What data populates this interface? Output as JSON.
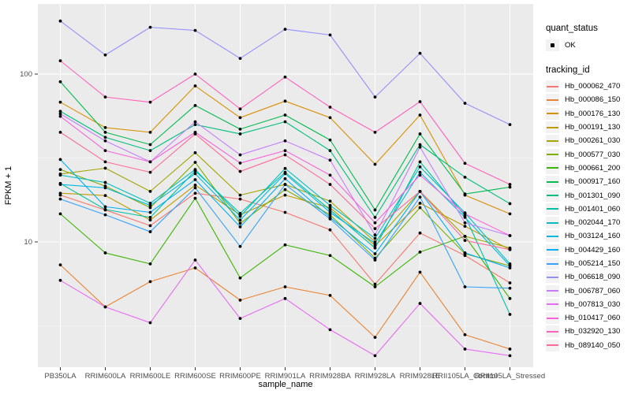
{
  "figure": {
    "background": "#FFFFFF",
    "panel_background": "#EBEBEB",
    "grid_major_color": "#FFFFFF",
    "grid_minor_color": "#F5F5F5",
    "tick_label_color": "#4D4D4D",
    "point_color": "#000000"
  },
  "chart_data": {
    "type": "line",
    "title": "",
    "xlabel": "sample_name",
    "ylabel": "FPKM + 1",
    "yscale": "log10",
    "ylim": [
      1.8,
      240
    ],
    "grid": true,
    "legend_position": "right",
    "point_shape": "filled-black-point",
    "yticks": [
      {
        "value": 10,
        "label": "10"
      },
      {
        "value": 100,
        "label": "100"
      }
    ],
    "minor_yticks": [
      3.1623,
      31.623
    ],
    "categories": [
      "PB350LA",
      "RRIM600LA",
      "RRIM600LE",
      "RRIM600SE",
      "RRIM600PE",
      "RRIM901LA",
      "RRIM928BA",
      "RRIM928LA",
      "RRIM928LE",
      "RRII105LA_Control",
      "RRII105LA_Stressed"
    ],
    "series": [
      {
        "tracking_id": "Hb_000062_470",
        "color": "#F8766D",
        "values": [
          19,
          15.5,
          12.5,
          19.5,
          18,
          15,
          11.8,
          5.6,
          11.3,
          8.3,
          5.7
        ]
      },
      {
        "tracking_id": "Hb_000086_150",
        "color": "#EA8331",
        "values": [
          7.3,
          4.1,
          5.8,
          7.0,
          4.5,
          5.4,
          4.8,
          2.7,
          6.6,
          2.8,
          2.3
        ]
      },
      {
        "tracking_id": "Hb_000176_130",
        "color": "#D89000",
        "values": [
          68,
          48,
          45,
          85,
          55,
          69,
          55,
          29,
          57,
          19,
          14.7
        ]
      },
      {
        "tracking_id": "Hb_000191_130",
        "color": "#C09B00",
        "values": [
          19.5,
          18.9,
          13.5,
          21.8,
          14.5,
          19,
          16,
          9.5,
          17,
          12.4,
          9.0
        ]
      },
      {
        "tracking_id": "Hb_000261_030",
        "color": "#A3A500",
        "values": [
          25.4,
          27.5,
          20,
          34,
          19,
          22,
          17.5,
          10,
          20,
          10.8,
          9.2
        ]
      },
      {
        "tracking_id": "Hb_000577_030",
        "color": "#7CAE00",
        "values": [
          27,
          21.5,
          16,
          29.8,
          12.9,
          20.5,
          14.5,
          8.0,
          16,
          8.5,
          7.2
        ]
      },
      {
        "tracking_id": "Hb_000661_200",
        "color": "#39B600",
        "values": [
          14.7,
          8.6,
          7.4,
          18.2,
          6.1,
          9.6,
          8.3,
          5.4,
          8.7,
          10.8,
          4.6
        ]
      },
      {
        "tracking_id": "Hb_000917_160",
        "color": "#00BB4E",
        "values": [
          90,
          45,
          38,
          65,
          47,
          57,
          40.5,
          15.5,
          44,
          19.3,
          21.2
        ]
      },
      {
        "tracking_id": "Hb_001301_090",
        "color": "#00BF7D",
        "values": [
          60,
          42,
          35,
          50,
          44,
          52,
          35,
          14,
          38,
          24.3,
          16.9
        ]
      },
      {
        "tracking_id": "Hb_001401_060",
        "color": "#00C1A3",
        "values": [
          22.3,
          15.6,
          14,
          26.5,
          14.8,
          26,
          15.5,
          9.2,
          30,
          14.3,
          3.7
        ]
      },
      {
        "tracking_id": "Hb_002044_170",
        "color": "#00BFC4",
        "values": [
          25,
          22.6,
          17,
          27,
          14.2,
          27.4,
          16.5,
          10.5,
          28,
          14.9,
          7.4
        ]
      },
      {
        "tracking_id": "Hb_003124_160",
        "color": "#00BAE0",
        "values": [
          22,
          21,
          16.5,
          25.5,
          13.5,
          25.5,
          15,
          9.8,
          26,
          14.0,
          7.2
        ]
      },
      {
        "tracking_id": "Hb_004429_160",
        "color": "#00B0F6",
        "values": [
          31,
          16.2,
          15,
          23.5,
          12.3,
          23.8,
          14,
          8.5,
          20,
          8.6,
          7.0
        ]
      },
      {
        "tracking_id": "Hb_005214_150",
        "color": "#35A2FF",
        "values": [
          18,
          14.5,
          11.5,
          21,
          9.4,
          22,
          13.7,
          7.8,
          18.5,
          5.4,
          5.3
        ]
      },
      {
        "tracking_id": "Hb_006618_090",
        "color": "#9590FF",
        "values": [
          207,
          130,
          190,
          182,
          124,
          185,
          171,
          73,
          133,
          67,
          50
        ]
      },
      {
        "tracking_id": "Hb_006787_060",
        "color": "#C77CFF",
        "values": [
          58,
          40,
          30,
          52,
          33,
          40,
          30.7,
          11,
          36.7,
          13,
          10.9
        ]
      },
      {
        "tracking_id": "Hb_007813_030",
        "color": "#E76BF3",
        "values": [
          5.9,
          4.1,
          3.3,
          7.8,
          3.5,
          4.6,
          3.0,
          2.1,
          4.3,
          2.3,
          2.1
        ]
      },
      {
        "tracking_id": "Hb_010417_060",
        "color": "#FA62DB",
        "values": [
          56,
          35,
          30,
          45,
          29.5,
          35,
          25,
          13,
          25,
          14.7,
          10.9
        ]
      },
      {
        "tracking_id": "Hb_032920_130",
        "color": "#FF62BC",
        "values": [
          120,
          73,
          68,
          100,
          62,
          96,
          63.5,
          45,
          68.5,
          29.4,
          22
        ]
      },
      {
        "tracking_id": "Hb_089140_050",
        "color": "#FF6A98",
        "values": [
          45,
          30,
          26,
          44,
          26.3,
          33,
          22,
          12,
          20,
          10.2,
          9.0
        ]
      }
    ]
  },
  "legend": {
    "quant_status": {
      "title": "quant_status",
      "items": [
        {
          "label": "OK",
          "marker": "black-point"
        }
      ]
    },
    "tracking": {
      "title": "tracking_id"
    }
  },
  "axes": {
    "x_title": "sample_name",
    "y_title": "FPKM + 1"
  }
}
